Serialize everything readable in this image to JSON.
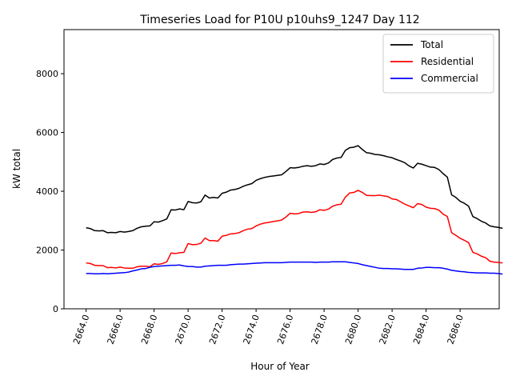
{
  "chart_data": {
    "type": "line",
    "title": "Timeseries Load for P10U p10uhs9_1247  Day 112",
    "xlabel": "Hour of Year",
    "ylabel": "kW total",
    "xlim": [
      2662.7,
      2688.3
    ],
    "ylim": [
      0,
      9500
    ],
    "x_ticks": [
      2664,
      2666,
      2668,
      2670,
      2672,
      2674,
      2676,
      2678,
      2680,
      2682,
      2684,
      2686
    ],
    "x_tick_labels": [
      "2664.0",
      "2666.0",
      "2668.0",
      "2670.0",
      "2672.0",
      "2674.0",
      "2676.0",
      "2678.0",
      "2680.0",
      "2682.0",
      "2684.0",
      "2686.0"
    ],
    "y_ticks": [
      0,
      2000,
      4000,
      6000,
      8000
    ],
    "y_tick_labels": [
      "0",
      "2000",
      "4000",
      "6000",
      "8000"
    ],
    "legend_position": "top-right",
    "x_start": 2664,
    "x_step": 0.25,
    "series": [
      {
        "name": "Total",
        "color": "#000000",
        "values": [
          2760,
          2730,
          2660,
          2650,
          2660,
          2590,
          2600,
          2590,
          2630,
          2610,
          2630,
          2660,
          2740,
          2790,
          2810,
          2820,
          2960,
          2950,
          3000,
          3060,
          3370,
          3360,
          3400,
          3370,
          3650,
          3610,
          3600,
          3640,
          3870,
          3770,
          3790,
          3770,
          3930,
          3970,
          4040,
          4060,
          4100,
          4170,
          4220,
          4260,
          4370,
          4430,
          4470,
          4500,
          4520,
          4540,
          4560,
          4670,
          4800,
          4790,
          4810,
          4850,
          4870,
          4850,
          4870,
          4930,
          4910,
          4960,
          5080,
          5130,
          5150,
          5390,
          5480,
          5500,
          5550,
          5420,
          5310,
          5290,
          5250,
          5240,
          5210,
          5170,
          5140,
          5080,
          5030,
          4970,
          4860,
          4790,
          4950,
          4920,
          4870,
          4820,
          4810,
          4740,
          4600,
          4480,
          3880,
          3790,
          3660,
          3590,
          3490,
          3140,
          3070,
          2980,
          2920,
          2820,
          2790,
          2770,
          2740
        ]
      },
      {
        "name": "Residential",
        "color": "#ff0000",
        "values": [
          1560,
          1540,
          1480,
          1470,
          1470,
          1400,
          1410,
          1390,
          1420,
          1390,
          1380,
          1380,
          1430,
          1450,
          1450,
          1430,
          1530,
          1510,
          1540,
          1600,
          1900,
          1880,
          1910,
          1920,
          2220,
          2180,
          2190,
          2230,
          2410,
          2320,
          2320,
          2300,
          2470,
          2500,
          2550,
          2560,
          2590,
          2660,
          2710,
          2730,
          2820,
          2880,
          2920,
          2940,
          2970,
          2990,
          3020,
          3120,
          3250,
          3230,
          3240,
          3290,
          3300,
          3280,
          3300,
          3370,
          3350,
          3390,
          3490,
          3540,
          3560,
          3800,
          3940,
          3960,
          4030,
          3960,
          3860,
          3850,
          3850,
          3870,
          3840,
          3820,
          3740,
          3720,
          3640,
          3560,
          3500,
          3440,
          3580,
          3550,
          3460,
          3420,
          3410,
          3360,
          3220,
          3140,
          2590,
          2500,
          2400,
          2330,
          2250,
          1920,
          1870,
          1790,
          1740,
          1620,
          1590,
          1580,
          1560
        ]
      },
      {
        "name": "Commercial",
        "color": "#0000ff",
        "values": [
          1200,
          1200,
          1190,
          1190,
          1200,
          1190,
          1200,
          1210,
          1220,
          1230,
          1250,
          1290,
          1320,
          1360,
          1370,
          1410,
          1440,
          1450,
          1460,
          1470,
          1480,
          1480,
          1490,
          1460,
          1440,
          1440,
          1420,
          1420,
          1450,
          1460,
          1470,
          1480,
          1480,
          1480,
          1500,
          1510,
          1520,
          1520,
          1530,
          1540,
          1550,
          1560,
          1570,
          1570,
          1570,
          1570,
          1570,
          1580,
          1590,
          1590,
          1590,
          1590,
          1590,
          1590,
          1580,
          1590,
          1590,
          1590,
          1600,
          1600,
          1600,
          1600,
          1580,
          1560,
          1540,
          1500,
          1470,
          1440,
          1410,
          1380,
          1370,
          1370,
          1360,
          1360,
          1350,
          1340,
          1340,
          1340,
          1380,
          1390,
          1410,
          1410,
          1400,
          1400,
          1380,
          1350,
          1310,
          1290,
          1270,
          1260,
          1240,
          1230,
          1220,
          1220,
          1220,
          1210,
          1210,
          1200,
          1180
        ]
      }
    ]
  }
}
